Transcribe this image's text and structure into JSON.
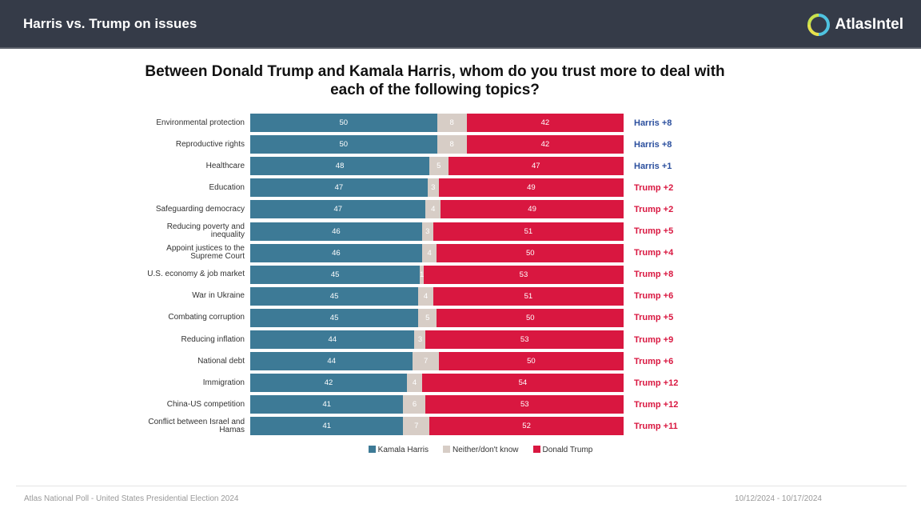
{
  "header": {
    "title": "Harris vs. Trump on issues",
    "logo_text": "AtlasIntel"
  },
  "chart_data": {
    "type": "bar",
    "stacked": true,
    "orientation": "horizontal",
    "title": "Between Donald Trump and Kamala Harris, whom do you trust more to deal with each of the following topics?",
    "legend": [
      "Kamala Harris",
      "Neither/don't know",
      "Donald Trump"
    ],
    "legend_position": "bottom",
    "colors": {
      "harris": "#3d7a96",
      "neither": "#d7cdc6",
      "trump": "#d91740",
      "harris_lead": "#2b4f9e",
      "trump_lead": "#d91740"
    },
    "categories": [
      "Environmental protection",
      "Reproductive rights",
      "Healthcare",
      "Education",
      "Safeguarding democracy",
      "Reducing poverty and inequality",
      "Appoint justices to the Supreme Court",
      "U.S. economy & job market",
      "War in Ukraine",
      "Combating corruption",
      "Reducing inflation",
      "National debt",
      "Immigration",
      "China-US competition",
      "Conflict between Israel and Hamas"
    ],
    "series": [
      {
        "name": "Kamala Harris",
        "values": [
          50,
          50,
          48,
          47,
          47,
          46,
          46,
          45,
          45,
          45,
          44,
          44,
          42,
          41,
          41
        ]
      },
      {
        "name": "Neither/don't know",
        "values": [
          8,
          8,
          5,
          3,
          4,
          3,
          4,
          1,
          4,
          5,
          3,
          7,
          4,
          6,
          7
        ]
      },
      {
        "name": "Donald Trump",
        "values": [
          42,
          42,
          47,
          49,
          49,
          51,
          50,
          53,
          51,
          50,
          53,
          50,
          54,
          53,
          52
        ]
      }
    ],
    "leads": [
      "Harris +8",
      "Harris +8",
      "Harris +1",
      "Trump +2",
      "Trump +2",
      "Trump +5",
      "Trump +4",
      "Trump +8",
      "Trump +6",
      "Trump +5",
      "Trump +9",
      "Trump +6",
      "Trump +12",
      "Trump +12",
      "Trump +11"
    ],
    "xlim": [
      0,
      100
    ]
  },
  "footer": {
    "source": "Atlas National Poll - United States Presidential Election 2024",
    "dates": "10/12/2024 - 10/17/2024"
  }
}
